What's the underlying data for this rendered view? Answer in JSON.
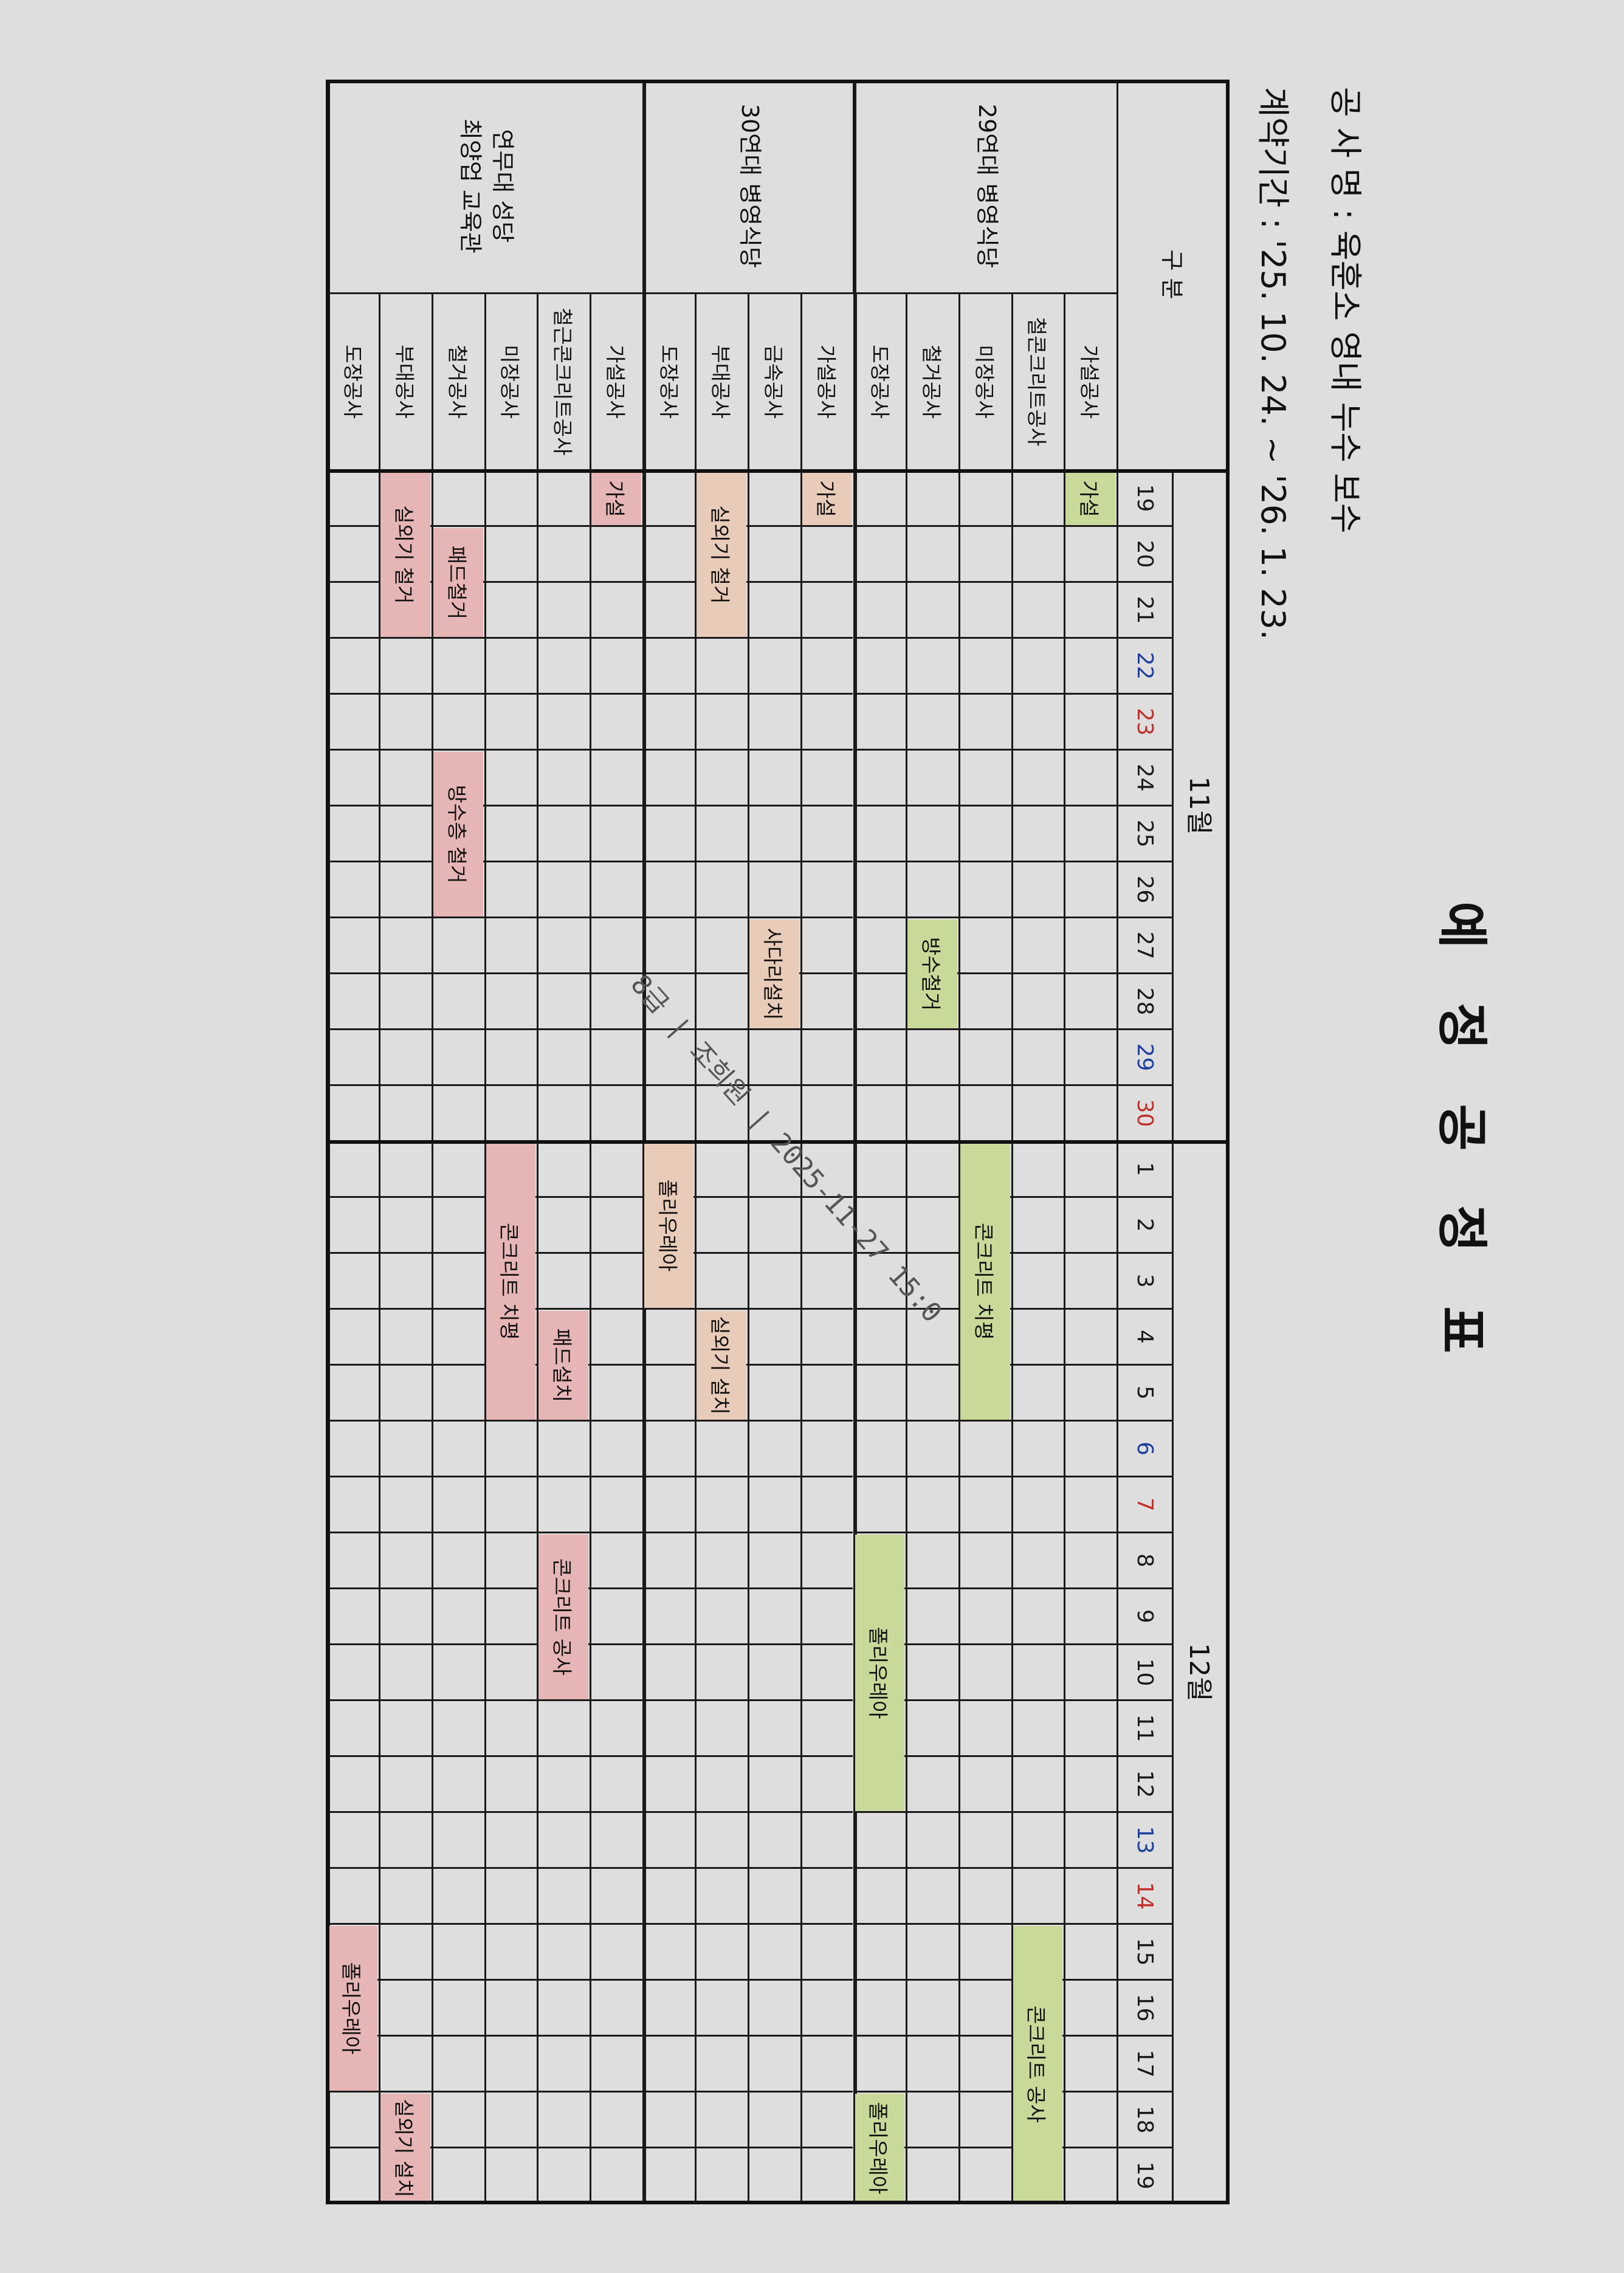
{
  "document": {
    "title": "예 정 공 정 표",
    "project_line": "공 사 명 : 육훈소 영내 누수 보수",
    "contract_line": "계약기간 : '25. 10. 24. ~ '26. 1. 23.",
    "watermark": "8급 | 조희원 | 2025-11-27 15:0"
  },
  "table": {
    "header_label": "구 분",
    "day_colors": {
      "weekday": "#1a1a1a",
      "sat": "#1f3f9f",
      "sun": "#c0302a"
    },
    "months": [
      {
        "label": "11월",
        "month": 11,
        "days": [
          {
            "d": "19",
            "kind": "weekday"
          },
          {
            "d": "20",
            "kind": "weekday"
          },
          {
            "d": "21",
            "kind": "weekday"
          },
          {
            "d": "22",
            "kind": "sat"
          },
          {
            "d": "23",
            "kind": "sun"
          },
          {
            "d": "24",
            "kind": "weekday"
          },
          {
            "d": "25",
            "kind": "weekday"
          },
          {
            "d": "26",
            "kind": "weekday"
          },
          {
            "d": "27",
            "kind": "weekday"
          },
          {
            "d": "28",
            "kind": "weekday"
          },
          {
            "d": "29",
            "kind": "sat"
          },
          {
            "d": "30",
            "kind": "sun"
          }
        ]
      },
      {
        "label": "12월",
        "month": 12,
        "days": [
          {
            "d": "1",
            "kind": "weekday"
          },
          {
            "d": "2",
            "kind": "weekday"
          },
          {
            "d": "3",
            "kind": "weekday"
          },
          {
            "d": "4",
            "kind": "weekday"
          },
          {
            "d": "5",
            "kind": "weekday"
          },
          {
            "d": "6",
            "kind": "sat"
          },
          {
            "d": "7",
            "kind": "sun"
          },
          {
            "d": "8",
            "kind": "weekday"
          },
          {
            "d": "9",
            "kind": "weekday"
          },
          {
            "d": "10",
            "kind": "weekday"
          },
          {
            "d": "11",
            "kind": "weekday"
          },
          {
            "d": "12",
            "kind": "weekday"
          },
          {
            "d": "13",
            "kind": "sat"
          },
          {
            "d": "14",
            "kind": "sun"
          },
          {
            "d": "15",
            "kind": "weekday"
          },
          {
            "d": "16",
            "kind": "weekday"
          },
          {
            "d": "17",
            "kind": "weekday"
          },
          {
            "d": "18",
            "kind": "weekday"
          },
          {
            "d": "19",
            "kind": "weekday"
          }
        ]
      }
    ],
    "groups": [
      {
        "name_lines": [
          "29연대 병영식당"
        ],
        "color": "#c9d99a",
        "items": [
          "가설공사",
          "철콘크리트공사",
          "미장공사",
          "철거공사",
          "도장공사"
        ]
      },
      {
        "name_lines": [
          "30연대 병영식당"
        ],
        "color": "#e8cbb8",
        "items": [
          "가설공사",
          "금속공사",
          "부대공사",
          "도장공사"
        ]
      },
      {
        "name_lines": [
          "연무대 성당",
          "최양업 교육관"
        ],
        "color": "#e6b5b5",
        "items": [
          "가설공사",
          "철근콘크리트공사",
          "미장공사",
          "철거공사",
          "부대공사",
          "도장공사"
        ]
      }
    ],
    "bars": [
      {
        "group": 0,
        "item": 0,
        "start": "11-19",
        "end": "11-19",
        "label": "가설"
      },
      {
        "group": 0,
        "item": 1,
        "start": "12-15",
        "end": "12-19",
        "label": "콘크리트 공사"
      },
      {
        "group": 0,
        "item": 2,
        "start": "12-1",
        "end": "12-5",
        "label": "콘크리트 치평"
      },
      {
        "group": 0,
        "item": 3,
        "start": "11-27",
        "end": "11-28",
        "label": "방수철거"
      },
      {
        "group": 0,
        "item": 4,
        "start": "12-8",
        "end": "12-12",
        "label": "폴리우레아"
      },
      {
        "group": 0,
        "item": 4,
        "start": "12-18",
        "end": "12-19",
        "label": "폴리우레아"
      },
      {
        "group": 1,
        "item": 0,
        "start": "11-19",
        "end": "11-19",
        "label": "가설"
      },
      {
        "group": 1,
        "item": 1,
        "start": "11-27",
        "end": "11-28",
        "label": "사다리설치"
      },
      {
        "group": 1,
        "item": 2,
        "start": "11-19",
        "end": "11-21",
        "label": "실외기 철거"
      },
      {
        "group": 1,
        "item": 2,
        "start": "12-4",
        "end": "12-5",
        "label": "실외기 설치"
      },
      {
        "group": 1,
        "item": 3,
        "start": "12-1",
        "end": "12-3",
        "label": "폴리우레아"
      },
      {
        "group": 2,
        "item": 0,
        "start": "11-19",
        "end": "11-19",
        "label": "가설"
      },
      {
        "group": 2,
        "item": 1,
        "start": "12-4",
        "end": "12-5",
        "label": "패드설치"
      },
      {
        "group": 2,
        "item": 1,
        "start": "12-8",
        "end": "12-10",
        "label": "콘크리트 공사"
      },
      {
        "group": 2,
        "item": 2,
        "start": "12-1",
        "end": "12-5",
        "label": "콘크리트 치평"
      },
      {
        "group": 2,
        "item": 3,
        "start": "11-20",
        "end": "11-21",
        "label": "패드철거"
      },
      {
        "group": 2,
        "item": 3,
        "start": "11-24",
        "end": "11-26",
        "label": "방수층 철거"
      },
      {
        "group": 2,
        "item": 4,
        "start": "11-19",
        "end": "11-21",
        "label": "실외기 철거"
      },
      {
        "group": 2,
        "item": 4,
        "start": "12-18",
        "end": "12-19",
        "label": "실외기 설치"
      },
      {
        "group": 2,
        "item": 5,
        "start": "12-15",
        "end": "12-17",
        "label": "폴리우레아"
      }
    ]
  }
}
